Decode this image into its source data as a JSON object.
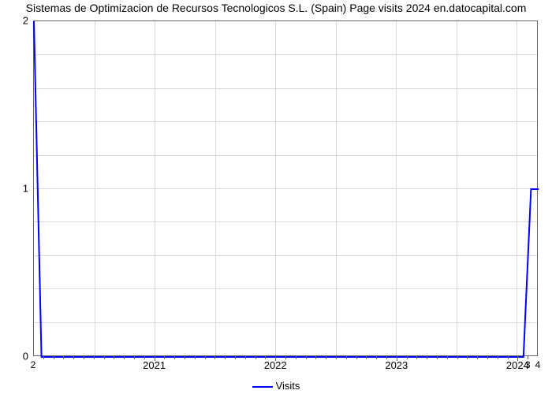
{
  "chart": {
    "type": "line",
    "title": "Sistemas de Optimizacion de Recursos Tecnologicos S.L. (Spain) Page visits 2024 en.datocapital.com",
    "title_fontsize": 14,
    "title_color": "#000000",
    "background_color": "#ffffff",
    "plot_border_color": "#666666",
    "grid_color": "#d9d9d9",
    "line_color": "#0000ff",
    "line_width": 2,
    "y": {
      "min": 0,
      "max": 2,
      "ticks": [
        0,
        1,
        2
      ],
      "minor_count_between_major": 4
    },
    "x": {
      "major_labels": [
        "2021",
        "2022",
        "2023",
        "2024"
      ],
      "minor_per_major": 12,
      "left_label": "2",
      "right_labels": [
        "3",
        "4"
      ]
    },
    "legend": {
      "label": "Visits",
      "color": "#0000ff"
    },
    "series": {
      "name": "Visits",
      "points": [
        {
          "x": 0.0,
          "y": 2.0
        },
        {
          "x": 0.015,
          "y": 0.0
        },
        {
          "x": 0.97,
          "y": 0.0
        },
        {
          "x": 0.985,
          "y": 1.0
        },
        {
          "x": 1.0,
          "y": 1.0
        }
      ]
    }
  }
}
